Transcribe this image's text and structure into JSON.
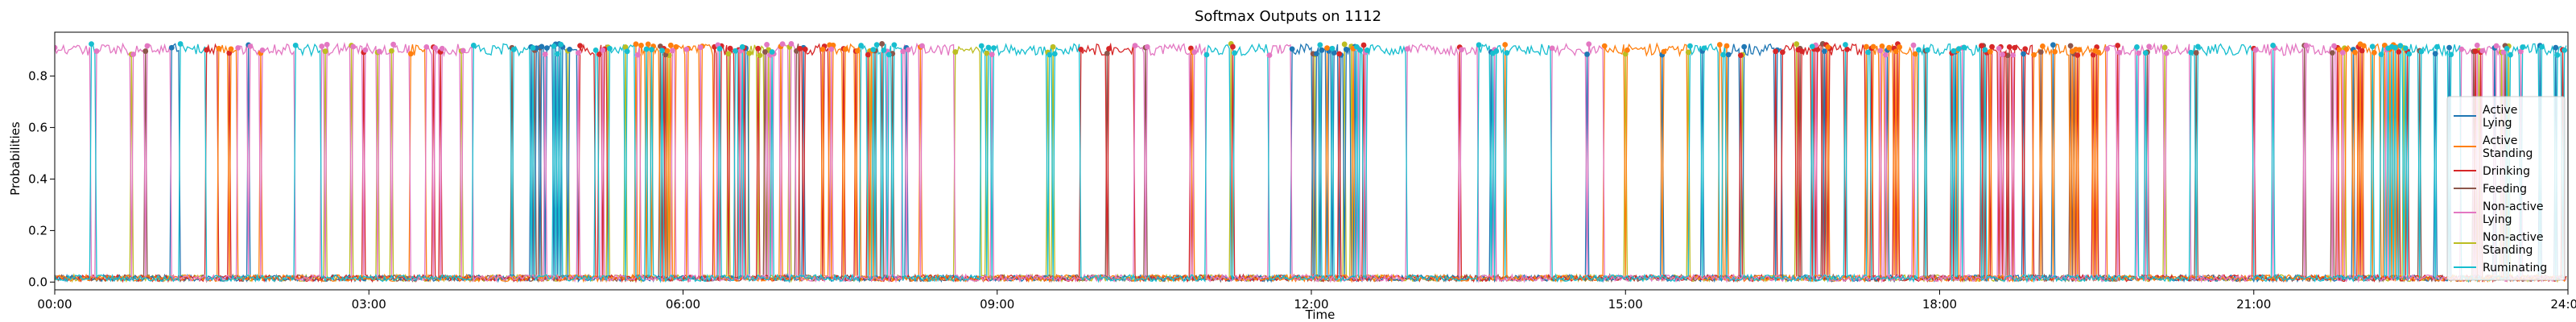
{
  "chart_data": {
    "type": "line",
    "title": "Softmax Outputs on 1112",
    "xlabel": "Time",
    "ylabel": "Probabilities",
    "xlim": [
      0,
      24
    ],
    "ylim": [
      -0.03,
      0.97
    ],
    "x_ticks": [
      {
        "value": 0,
        "label": "00:00"
      },
      {
        "value": 3,
        "label": "03:00"
      },
      {
        "value": 6,
        "label": "06:00"
      },
      {
        "value": 9,
        "label": "09:00"
      },
      {
        "value": 12,
        "label": "12:00"
      },
      {
        "value": 15,
        "label": "15:00"
      },
      {
        "value": 18,
        "label": "18:00"
      },
      {
        "value": 21,
        "label": "21:00"
      },
      {
        "value": 24,
        "label": "24:00"
      }
    ],
    "y_ticks": [
      {
        "value": 0.0,
        "label": "0.0"
      },
      {
        "value": 0.2,
        "label": "0.2"
      },
      {
        "value": 0.4,
        "label": "0.4"
      },
      {
        "value": 0.6,
        "label": "0.6"
      },
      {
        "value": 0.8,
        "label": "0.8"
      }
    ],
    "grid": false,
    "legend_position": "right",
    "series": [
      {
        "name": "Active Lying",
        "legend_lines": [
          "Active",
          "Lying"
        ],
        "color": "#1f77b4"
      },
      {
        "name": "Active Standing",
        "legend_lines": [
          "Active",
          "Standing"
        ],
        "color": "#ff7f0e"
      },
      {
        "name": "Drinking",
        "legend_lines": [
          "Drinking"
        ],
        "color": "#d62728"
      },
      {
        "name": "Feeding",
        "legend_lines": [
          "Feeding"
        ],
        "color": "#8c564b"
      },
      {
        "name": "Non-active Lying",
        "legend_lines": [
          "Non-active",
          "Lying"
        ],
        "color": "#e377c2"
      },
      {
        "name": "Non-active Standing",
        "legend_lines": [
          "Non-active",
          "Standing"
        ],
        "color": "#bcbd22"
      },
      {
        "name": "Ruminating",
        "legend_lines": [
          "Ruminating"
        ],
        "color": "#17becf"
      }
    ],
    "segments": [
      [
        0.0,
        0.35,
        "Non-active Lying"
      ],
      [
        0.35,
        0.4,
        "Ruminating"
      ],
      [
        0.4,
        1.1,
        "Non-active Lying"
      ],
      [
        1.1,
        1.2,
        "Active Lying"
      ],
      [
        1.2,
        1.45,
        "Ruminating"
      ],
      [
        1.45,
        1.55,
        "Drinking"
      ],
      [
        1.55,
        1.75,
        "Active Standing"
      ],
      [
        1.75,
        2.3,
        "Non-active Lying"
      ],
      [
        2.3,
        2.55,
        "Ruminating"
      ],
      [
        2.55,
        3.4,
        "Non-active Lying"
      ],
      [
        3.4,
        3.55,
        "Active Standing"
      ],
      [
        3.55,
        4.0,
        "Non-active Lying"
      ],
      [
        4.0,
        4.6,
        "Ruminating"
      ],
      [
        4.6,
        5.0,
        "Active Lying"
      ],
      [
        5.0,
        5.3,
        "Drinking"
      ],
      [
        5.3,
        5.55,
        "Ruminating"
      ],
      [
        5.55,
        6.3,
        "Active Standing"
      ],
      [
        6.3,
        6.6,
        "Drinking"
      ],
      [
        6.6,
        6.8,
        "Non-active Standing"
      ],
      [
        6.8,
        7.1,
        "Non-active Lying"
      ],
      [
        7.1,
        7.4,
        "Drinking"
      ],
      [
        7.4,
        7.7,
        "Active Standing"
      ],
      [
        7.7,
        8.1,
        "Ruminating"
      ],
      [
        8.1,
        8.6,
        "Non-active Lying"
      ],
      [
        8.6,
        8.85,
        "Non-active Standing"
      ],
      [
        8.85,
        9.8,
        "Ruminating"
      ],
      [
        9.8,
        10.3,
        "Drinking"
      ],
      [
        10.3,
        11.0,
        "Non-active Lying"
      ],
      [
        11.0,
        11.6,
        "Ruminating"
      ],
      [
        11.6,
        11.8,
        "Non-active Lying"
      ],
      [
        11.8,
        12.4,
        "Active Lying"
      ],
      [
        12.4,
        12.9,
        "Ruminating"
      ],
      [
        12.9,
        13.6,
        "Non-active Lying"
      ],
      [
        13.6,
        14.3,
        "Ruminating"
      ],
      [
        14.3,
        14.8,
        "Non-active Lying"
      ],
      [
        14.8,
        15.6,
        "Active Standing"
      ],
      [
        15.6,
        16.0,
        "Ruminating"
      ],
      [
        16.0,
        16.5,
        "Active Lying"
      ],
      [
        16.5,
        17.3,
        "Drinking"
      ],
      [
        17.3,
        17.8,
        "Active Standing"
      ],
      [
        17.8,
        18.4,
        "Ruminating"
      ],
      [
        18.4,
        18.9,
        "Drinking"
      ],
      [
        18.9,
        19.6,
        "Active Standing"
      ],
      [
        19.6,
        20.4,
        "Non-active Lying"
      ],
      [
        20.4,
        21.0,
        "Ruminating"
      ],
      [
        21.0,
        21.8,
        "Non-active Lying"
      ],
      [
        21.8,
        22.2,
        "Active Standing"
      ],
      [
        22.2,
        23.0,
        "Ruminating"
      ],
      [
        23.0,
        23.4,
        "Non-active Lying"
      ],
      [
        23.4,
        24.0,
        "Ruminating"
      ]
    ]
  }
}
